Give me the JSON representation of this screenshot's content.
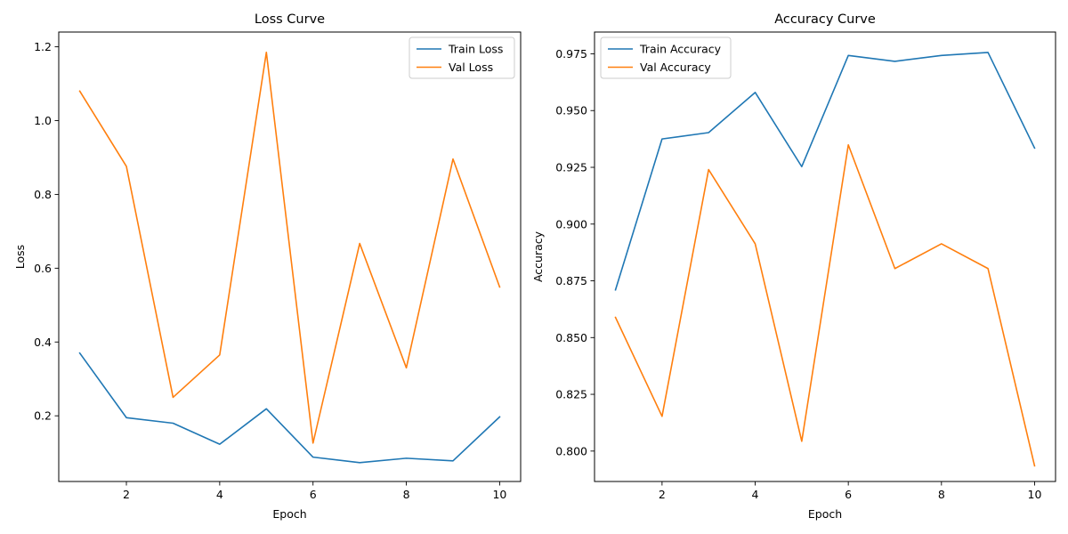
{
  "chart_data": [
    {
      "type": "line",
      "title": "Loss Curve",
      "xlabel": "Epoch",
      "ylabel": "Loss",
      "xlim": [
        0.55,
        10.45
      ],
      "ylim": [
        0.022,
        1.24
      ],
      "x": [
        1,
        2,
        3,
        4,
        5,
        6,
        7,
        8,
        9,
        10
      ],
      "xticks": [
        2,
        4,
        6,
        8,
        10
      ],
      "xtick_labels": [
        "2",
        "4",
        "6",
        "8",
        "10"
      ],
      "yticks": [
        0.2,
        0.4,
        0.6,
        0.8,
        1.0,
        1.2
      ],
      "ytick_labels": [
        "0.2",
        "0.4",
        "0.6",
        "0.8",
        "1.0",
        "1.2"
      ],
      "legend_position": "upper right",
      "series": [
        {
          "name": "Train Loss",
          "color": "#1f77b4",
          "values": [
            0.37,
            0.195,
            0.18,
            0.123,
            0.219,
            0.088,
            0.073,
            0.085,
            0.078,
            0.197
          ]
        },
        {
          "name": "Val Loss",
          "color": "#ff7f0e",
          "values": [
            1.08,
            0.876,
            0.25,
            0.365,
            1.185,
            0.126,
            0.667,
            0.33,
            0.896,
            0.549
          ]
        }
      ]
    },
    {
      "type": "line",
      "title": "Accuracy Curve",
      "xlabel": "Epoch",
      "ylabel": "Accuracy",
      "xlim": [
        0.55,
        10.45
      ],
      "ylim": [
        0.7866,
        0.9846
      ],
      "x": [
        1,
        2,
        3,
        4,
        5,
        6,
        7,
        8,
        9,
        10
      ],
      "xticks": [
        2,
        4,
        6,
        8,
        10
      ],
      "xtick_labels": [
        "2",
        "4",
        "6",
        "8",
        "10"
      ],
      "yticks": [
        0.8,
        0.825,
        0.85,
        0.875,
        0.9,
        0.925,
        0.95,
        0.975
      ],
      "ytick_labels": [
        "0.800",
        "0.825",
        "0.850",
        "0.875",
        "0.900",
        "0.925",
        "0.950",
        "0.975"
      ],
      "legend_position": "upper left",
      "series": [
        {
          "name": "Train Accuracy",
          "color": "#1f77b4",
          "values": [
            0.871,
            0.9375,
            0.9403,
            0.958,
            0.9253,
            0.9743,
            0.9717,
            0.9743,
            0.9756,
            0.9335
          ]
        },
        {
          "name": "Val Accuracy",
          "color": "#ff7f0e",
          "values": [
            0.8589,
            0.8153,
            0.924,
            0.8913,
            0.8043,
            0.9349,
            0.8804,
            0.8913,
            0.8804,
            0.7935
          ]
        }
      ]
    }
  ]
}
